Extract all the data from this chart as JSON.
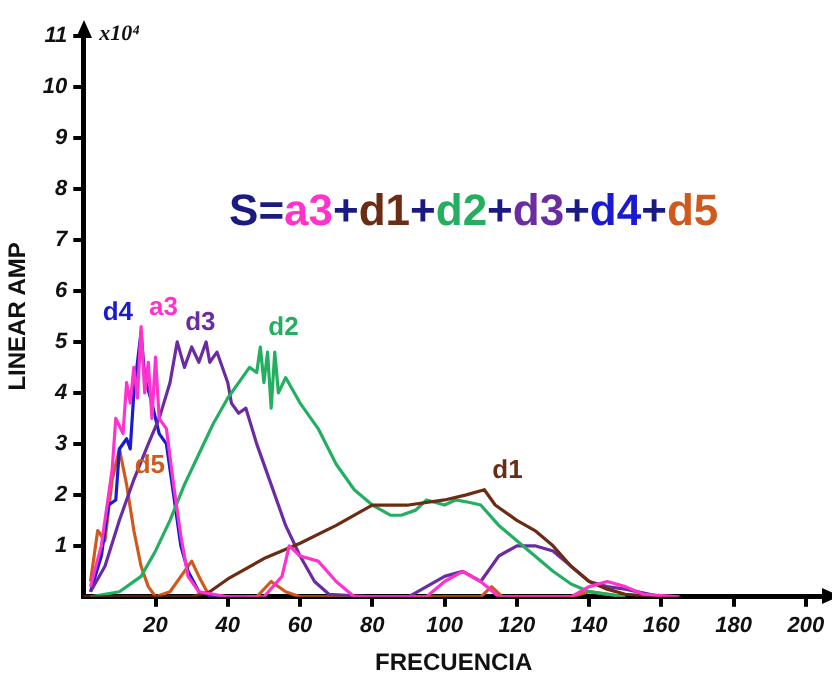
{
  "chart_data": {
    "type": "line",
    "xlabel": "FRECUENCIA",
    "ylabel": "LINEAR AMP",
    "annotations": [
      "x10⁴",
      "S=a3+d1+d2+d3+d4+d5"
    ],
    "xlim": [
      0,
      205
    ],
    "xticks": [
      20,
      40,
      60,
      80,
      100,
      120,
      140,
      160,
      180,
      200
    ],
    "ylim": [
      0,
      11
    ],
    "yticks": [
      1,
      2,
      3,
      4,
      5,
      6,
      7,
      8,
      9,
      10,
      11
    ],
    "grid": false,
    "legend": false,
    "marker": "none",
    "line_style": "solid",
    "series": [
      {
        "name": "a3",
        "color": "#ff33cc",
        "x": [
          2,
          5,
          8,
          9,
          11,
          12,
          13,
          14,
          15,
          16,
          17,
          18,
          19,
          20,
          21,
          23,
          25,
          27,
          29,
          32,
          40,
          50,
          55,
          57,
          60,
          65,
          70,
          75,
          95,
          100,
          105,
          110,
          115,
          135,
          140,
          145,
          150,
          155,
          165
        ],
        "values": [
          0.2,
          1,
          2.5,
          3.5,
          3.2,
          4.2,
          3.8,
          4.5,
          3.9,
          5.3,
          4.0,
          4.6,
          3.5,
          4.7,
          3.5,
          3.3,
          2.2,
          1.2,
          0.4,
          0.1,
          0,
          0,
          0.4,
          1.0,
          0.8,
          0.7,
          0.3,
          0,
          0,
          0.3,
          0.5,
          0.3,
          0,
          0,
          0.2,
          0.3,
          0.2,
          0.05,
          0
        ]
      },
      {
        "name": "d1",
        "color": "#6b2c14",
        "x": [
          0,
          30,
          35,
          40,
          50,
          60,
          70,
          80,
          90,
          100,
          106,
          111,
          114,
          120,
          125,
          130,
          135,
          140,
          145,
          150,
          160
        ],
        "values": [
          0,
          0,
          0.1,
          0.35,
          0.75,
          1.05,
          1.4,
          1.8,
          1.8,
          1.9,
          2.0,
          2.1,
          1.8,
          1.5,
          1.3,
          1.0,
          0.6,
          0.3,
          0.15,
          0.05,
          0
        ]
      },
      {
        "name": "d2",
        "color": "#22b060",
        "x": [
          2,
          10,
          16,
          20,
          24,
          28,
          32,
          36,
          40,
          44,
          46,
          48,
          49,
          50,
          51,
          52,
          53,
          54,
          56,
          60,
          65,
          70,
          75,
          80,
          85,
          88,
          92,
          95,
          100,
          103,
          107,
          110,
          115,
          120,
          125,
          130,
          135,
          140,
          150
        ],
        "values": [
          0,
          0.1,
          0.4,
          0.9,
          1.5,
          2.2,
          2.8,
          3.4,
          3.9,
          4.3,
          4.5,
          4.4,
          4.9,
          4.2,
          4.8,
          3.7,
          4.8,
          4.0,
          4.3,
          3.8,
          3.3,
          2.6,
          2.1,
          1.8,
          1.6,
          1.6,
          1.7,
          1.9,
          1.8,
          1.9,
          1.85,
          1.8,
          1.4,
          1.1,
          0.8,
          0.5,
          0.25,
          0.1,
          0
        ]
      },
      {
        "name": "d3",
        "color": "#6a2ca0",
        "x": [
          2,
          6,
          10,
          14,
          18,
          21,
          24,
          26,
          28,
          30,
          32,
          34,
          35,
          37,
          40,
          41,
          43,
          45,
          48,
          52,
          56,
          60,
          64,
          68,
          80,
          90,
          95,
          100,
          105,
          110,
          115,
          120,
          125,
          130,
          135,
          140,
          145,
          150,
          160
        ],
        "values": [
          0.1,
          0.6,
          1.5,
          2.3,
          3.0,
          3.5,
          4.2,
          5.0,
          4.5,
          4.9,
          4.6,
          5.0,
          4.6,
          4.8,
          4.2,
          3.8,
          3.6,
          3.7,
          3.0,
          2.2,
          1.4,
          0.8,
          0.3,
          0.05,
          0,
          0,
          0.2,
          0.4,
          0.5,
          0.3,
          0.8,
          1.0,
          1.0,
          0.9,
          0.6,
          0.3,
          0.2,
          0.15,
          0
        ]
      },
      {
        "name": "d4",
        "color": "#1a1ad0",
        "x": [
          2,
          5,
          7,
          9,
          10,
          12,
          13,
          14,
          16,
          17,
          19,
          21,
          23,
          25,
          27,
          29,
          32,
          36,
          45
        ],
        "values": [
          0.1,
          0.8,
          1.8,
          1.9,
          2.9,
          3.1,
          2.9,
          4.0,
          5.2,
          4.3,
          3.8,
          3.2,
          3.0,
          2.0,
          1.0,
          0.5,
          0.1,
          0,
          0
        ]
      },
      {
        "name": "d5",
        "color": "#d05a1e",
        "x": [
          2,
          4,
          6,
          8,
          10,
          12,
          14,
          16,
          18,
          20,
          24,
          28,
          30,
          32,
          35,
          48,
          52,
          56,
          60,
          110,
          113,
          116,
          135,
          140,
          150
        ],
        "values": [
          0.3,
          1.3,
          1.1,
          2.3,
          2.9,
          2.2,
          1.3,
          0.6,
          0.2,
          0,
          0.1,
          0.5,
          0.7,
          0.4,
          0,
          0,
          0.3,
          0.1,
          0,
          0,
          0.2,
          0,
          0,
          0.1,
          0
        ]
      }
    ]
  }
}
